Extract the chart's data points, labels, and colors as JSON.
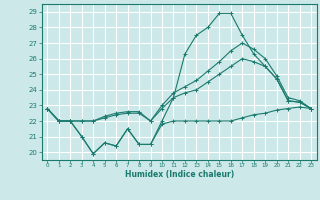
{
  "xlabel": "Humidex (Indice chaleur)",
  "ylabel": "",
  "xlim": [
    -0.5,
    23.5
  ],
  "ylim": [
    19.5,
    29.5
  ],
  "yticks": [
    20,
    21,
    22,
    23,
    24,
    25,
    26,
    27,
    28,
    29
  ],
  "xticks": [
    0,
    1,
    2,
    3,
    4,
    5,
    6,
    7,
    8,
    9,
    10,
    11,
    12,
    13,
    14,
    15,
    16,
    17,
    18,
    19,
    20,
    21,
    22,
    23
  ],
  "bg_color": "#cce8e8",
  "grid_color": "#ffffff",
  "line_color": "#1a7a6e",
  "series": [
    [
      22.8,
      22.0,
      22.0,
      21.0,
      19.9,
      20.6,
      20.4,
      21.5,
      20.5,
      20.5,
      21.8,
      22.0,
      22.0,
      22.0,
      22.0,
      22.0,
      22.0,
      22.2,
      22.4,
      22.5,
      22.7,
      22.8,
      22.9,
      22.8
    ],
    [
      22.8,
      22.0,
      22.0,
      22.0,
      22.0,
      22.2,
      22.4,
      22.5,
      22.5,
      22.0,
      22.8,
      23.5,
      23.8,
      24.0,
      24.5,
      25.0,
      25.5,
      26.0,
      25.8,
      25.5,
      24.7,
      23.3,
      23.2,
      22.8
    ],
    [
      22.8,
      22.0,
      22.0,
      22.0,
      22.0,
      22.3,
      22.5,
      22.6,
      22.6,
      22.0,
      23.0,
      23.8,
      24.2,
      24.6,
      25.2,
      25.8,
      26.5,
      27.0,
      26.6,
      26.0,
      24.9,
      23.5,
      23.3,
      22.8
    ],
    [
      22.8,
      22.0,
      22.0,
      21.0,
      19.9,
      20.6,
      20.4,
      21.5,
      20.5,
      20.5,
      22.0,
      23.5,
      26.3,
      27.5,
      28.0,
      28.9,
      28.9,
      27.5,
      26.3,
      25.5,
      24.7,
      23.3,
      23.2,
      22.8
    ]
  ]
}
